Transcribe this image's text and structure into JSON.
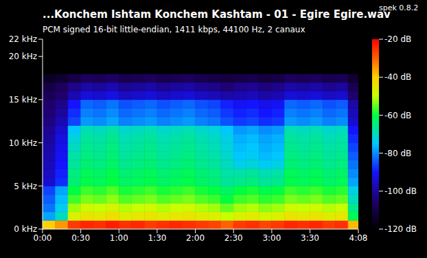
{
  "chart_data": {
    "type": "heatmap",
    "title": "...Konchem Ishtam Konchem Kashtam - 01 - Egire Egire.wav",
    "annotation": "spek 0.8.2",
    "subtitle": "PCM signed 16-bit little-endian, 1411 kbps, 44100 Hz, 2 canaux",
    "xlim": [
      0,
      248
    ],
    "xticks": [
      {
        "value": 0,
        "label": "0:00"
      },
      {
        "value": 30,
        "label": "0:30"
      },
      {
        "value": 60,
        "label": "1:00"
      },
      {
        "value": 90,
        "label": "1:30"
      },
      {
        "value": 120,
        "label": "2:00"
      },
      {
        "value": 150,
        "label": "2:30"
      },
      {
        "value": 180,
        "label": "3:00"
      },
      {
        "value": 210,
        "label": "3:30"
      },
      {
        "value": 248,
        "label": "4:08"
      }
    ],
    "ylim": [
      0,
      22
    ],
    "yticks": [
      {
        "value": 0,
        "label": "0 kHz"
      },
      {
        "value": 5,
        "label": "5 kHz"
      },
      {
        "value": 10,
        "label": "10 kHz"
      },
      {
        "value": 15,
        "label": "15 kHz"
      },
      {
        "value": 20,
        "label": "20 kHz"
      },
      {
        "value": 22,
        "label": "22 kHz"
      }
    ],
    "x_edges": [
      0,
      10,
      20,
      30,
      40,
      50,
      60,
      70,
      80,
      90,
      100,
      110,
      120,
      130,
      140,
      150,
      160,
      170,
      180,
      190,
      200,
      210,
      220,
      230,
      240,
      248
    ],
    "y_edges": [
      0,
      1,
      2,
      3,
      4,
      5,
      6,
      7,
      8,
      9,
      10,
      11,
      12,
      13,
      14,
      15,
      16,
      17,
      18,
      19,
      20,
      21,
      22
    ],
    "cells": [
      [
        -40,
        -35,
        -26,
        -24,
        -25,
        -23,
        -25,
        -24,
        -26,
        -25,
        -24,
        -25,
        -26,
        -27,
        -30,
        -26,
        -25,
        -27,
        -26,
        -24,
        -25,
        -24,
        -26,
        -25,
        -38
      ],
      [
        -78,
        -70,
        -47,
        -44,
        -45,
        -43,
        -46,
        -45,
        -44,
        -46,
        -45,
        -44,
        -46,
        -47,
        -50,
        -47,
        -46,
        -48,
        -47,
        -44,
        -45,
        -44,
        -46,
        -45,
        -62
      ],
      [
        -82,
        -74,
        -52,
        -49,
        -50,
        -48,
        -51,
        -50,
        -49,
        -51,
        -50,
        -49,
        -51,
        -52,
        -55,
        -52,
        -51,
        -53,
        -52,
        -49,
        -50,
        -49,
        -51,
        -50,
        -66
      ],
      [
        -84,
        -76,
        -57,
        -54,
        -55,
        -53,
        -56,
        -55,
        -54,
        -56,
        -55,
        -54,
        -56,
        -57,
        -60,
        -57,
        -56,
        -58,
        -57,
        -54,
        -55,
        -54,
        -56,
        -55,
        -70
      ],
      [
        -86,
        -78,
        -60,
        -57,
        -58,
        -56,
        -59,
        -58,
        -57,
        -59,
        -58,
        -57,
        -59,
        -60,
        -63,
        -60,
        -59,
        -61,
        -60,
        -57,
        -58,
        -57,
        -59,
        -58,
        -73
      ],
      [
        -95,
        -88,
        -64,
        -61,
        -62,
        -60,
        -63,
        -62,
        -61,
        -63,
        -62,
        -61,
        -63,
        -64,
        -67,
        -66,
        -65,
        -67,
        -66,
        -61,
        -62,
        -61,
        -63,
        -62,
        -78
      ],
      [
        -96,
        -89,
        -65,
        -62,
        -63,
        -61,
        -64,
        -63,
        -62,
        -64,
        -63,
        -62,
        -64,
        -65,
        -68,
        -68,
        -67,
        -69,
        -68,
        -62,
        -63,
        -62,
        -64,
        -63,
        -80
      ],
      [
        -97,
        -90,
        -67,
        -64,
        -65,
        -63,
        -66,
        -65,
        -64,
        -66,
        -65,
        -64,
        -66,
        -67,
        -70,
        -73,
        -72,
        -74,
        -73,
        -64,
        -65,
        -64,
        -66,
        -65,
        -82
      ],
      [
        -98,
        -91,
        -68,
        -65,
        -66,
        -64,
        -67,
        -66,
        -65,
        -67,
        -66,
        -65,
        -67,
        -68,
        -71,
        -75,
        -74,
        -76,
        -75,
        -65,
        -66,
        -65,
        -67,
        -66,
        -84
      ],
      [
        -99,
        -92,
        -70,
        -66,
        -67,
        -65,
        -68,
        -67,
        -66,
        -68,
        -67,
        -66,
        -68,
        -69,
        -72,
        -76,
        -75,
        -77,
        -76,
        -66,
        -67,
        -66,
        -68,
        -67,
        -86
      ],
      [
        -100,
        -93,
        -72,
        -67,
        -68,
        -66,
        -69,
        -68,
        -67,
        -69,
        -68,
        -67,
        -69,
        -70,
        -73,
        -77,
        -76,
        -78,
        -77,
        -67,
        -68,
        -67,
        -69,
        -68,
        -88
      ],
      [
        -101,
        -95,
        -75,
        -69,
        -70,
        -68,
        -71,
        -70,
        -69,
        -71,
        -70,
        -69,
        -71,
        -72,
        -75,
        -79,
        -78,
        -80,
        -79,
        -69,
        -70,
        -69,
        -71,
        -70,
        -90
      ],
      [
        -103,
        -98,
        -86,
        -79,
        -80,
        -78,
        -81,
        -80,
        -79,
        -81,
        -80,
        -79,
        -81,
        -82,
        -85,
        -87,
        -86,
        -88,
        -87,
        -79,
        -80,
        -79,
        -81,
        -80,
        -95
      ],
      [
        -104,
        -100,
        -88,
        -81,
        -82,
        -80,
        -83,
        -82,
        -81,
        -83,
        -82,
        -81,
        -83,
        -84,
        -87,
        -89,
        -88,
        -90,
        -89,
        -81,
        -82,
        -81,
        -83,
        -82,
        -97
      ],
      [
        -105,
        -102,
        -90,
        -83,
        -84,
        -82,
        -85,
        -84,
        -83,
        -85,
        -84,
        -83,
        -85,
        -86,
        -89,
        -91,
        -90,
        -92,
        -91,
        -83,
        -84,
        -83,
        -85,
        -84,
        -99
      ],
      [
        -108,
        -105,
        -98,
        -94,
        -95,
        -93,
        -96,
        -95,
        -94,
        -96,
        -95,
        -94,
        -96,
        -97,
        -99,
        -98,
        -97,
        -99,
        -98,
        -94,
        -95,
        -94,
        -96,
        -95,
        -105
      ],
      [
        -110,
        -107,
        -102,
        -99,
        -100,
        -98,
        -101,
        -100,
        -99,
        -101,
        -100,
        -99,
        -101,
        -102,
        -104,
        -102,
        -101,
        -103,
        -102,
        -99,
        -100,
        -99,
        -101,
        -100,
        -108
      ],
      [
        -115,
        -113,
        -110,
        -107,
        -108,
        -106,
        -109,
        -108,
        -107,
        -109,
        -108,
        -107,
        -109,
        -110,
        -111,
        -110,
        -109,
        -111,
        -110,
        -107,
        -108,
        -107,
        -109,
        -108,
        -113
      ],
      [
        -120,
        -120,
        -120,
        -120,
        -120,
        -120,
        -120,
        -120,
        -120,
        -120,
        -120,
        -120,
        -120,
        -120,
        -120,
        -120,
        -120,
        -120,
        -120,
        -120,
        -120,
        -120,
        -120,
        -120,
        -120
      ],
      [
        -120,
        -120,
        -120,
        -120,
        -120,
        -120,
        -120,
        -120,
        -120,
        -120,
        -120,
        -120,
        -120,
        -120,
        -120,
        -120,
        -120,
        -120,
        -120,
        -120,
        -120,
        -120,
        -120,
        -120,
        -120
      ],
      [
        -120,
        -120,
        -120,
        -120,
        -120,
        -120,
        -120,
        -120,
        -120,
        -120,
        -120,
        -120,
        -120,
        -120,
        -120,
        -120,
        -120,
        -120,
        -120,
        -120,
        -120,
        -120,
        -120,
        -120,
        -120
      ],
      [
        -120,
        -120,
        -120,
        -120,
        -120,
        -120,
        -120,
        -120,
        -120,
        -120,
        -120,
        -120,
        -120,
        -120,
        -120,
        -120,
        -120,
        -120,
        -120,
        -120,
        -120,
        -120,
        -120,
        -120,
        -120
      ]
    ],
    "colorbar": {
      "range": [
        -120,
        -20
      ],
      "ticks": [
        {
          "value": -20,
          "label": "-20 dB"
        },
        {
          "value": -40,
          "label": "-40 dB"
        },
        {
          "value": -60,
          "label": "-60 dB"
        },
        {
          "value": -80,
          "label": "-80 dB"
        },
        {
          "value": -100,
          "label": "-100 dB"
        },
        {
          "value": -120,
          "label": "-120 dB"
        }
      ]
    }
  }
}
